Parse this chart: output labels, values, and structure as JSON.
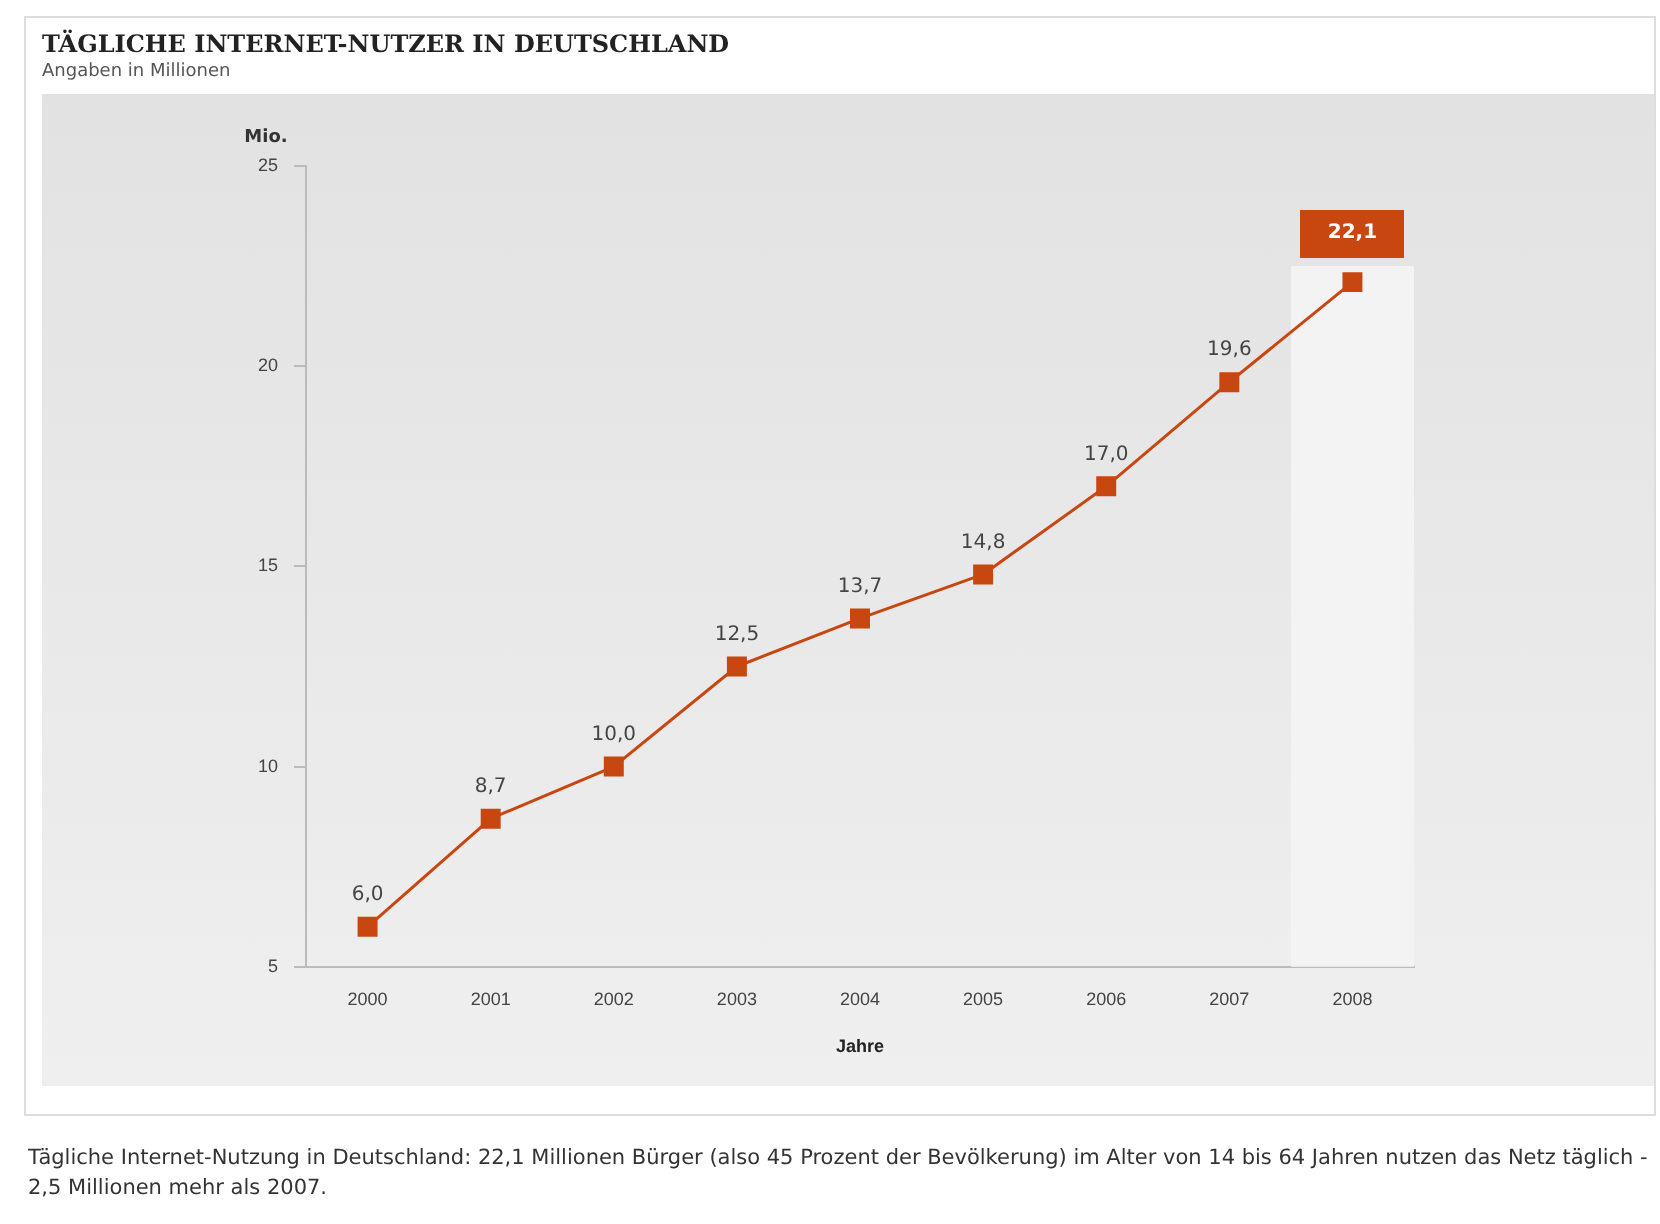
{
  "chart_data": {
    "type": "line",
    "title": "TÄGLICHE INTERNET-NUTZER IN DEUTSCHLAND",
    "subtitle": "Angaben in Millionen",
    "xlabel": "Jahre",
    "ylabel": "Mio.",
    "categories": [
      "2000",
      "2001",
      "2002",
      "2003",
      "2004",
      "2005",
      "2006",
      "2007",
      "2008"
    ],
    "series": [
      {
        "color": "#c8460f",
        "values": [
          6.0,
          8.7,
          10.0,
          12.5,
          13.7,
          14.8,
          17.0,
          19.6,
          22.1
        ],
        "value_labels": [
          "6,0",
          "8,7",
          "10,0",
          "12,5",
          "13,7",
          "14,8",
          "17,0",
          "19,6",
          "22,1"
        ]
      }
    ],
    "ylim": [
      5,
      25
    ],
    "yticks": [
      5,
      10,
      15,
      20,
      25
    ],
    "grid": false,
    "legend": false,
    "marker": "square",
    "line_style": "solid",
    "bands": [
      {
        "axis": "x",
        "from": "2008",
        "to": "2008",
        "color": "#f3f3f3"
      }
    ],
    "annotations": [
      "Tägliche Internet-Nutzung in Deutschland: 22,1 Millionen Bürger (also 45 Prozent der Bevölkerung) im Alter von 14 bis 64 Jahren nutzen das Netz täglich - 2,5 Millionen mehr als 2007."
    ]
  }
}
